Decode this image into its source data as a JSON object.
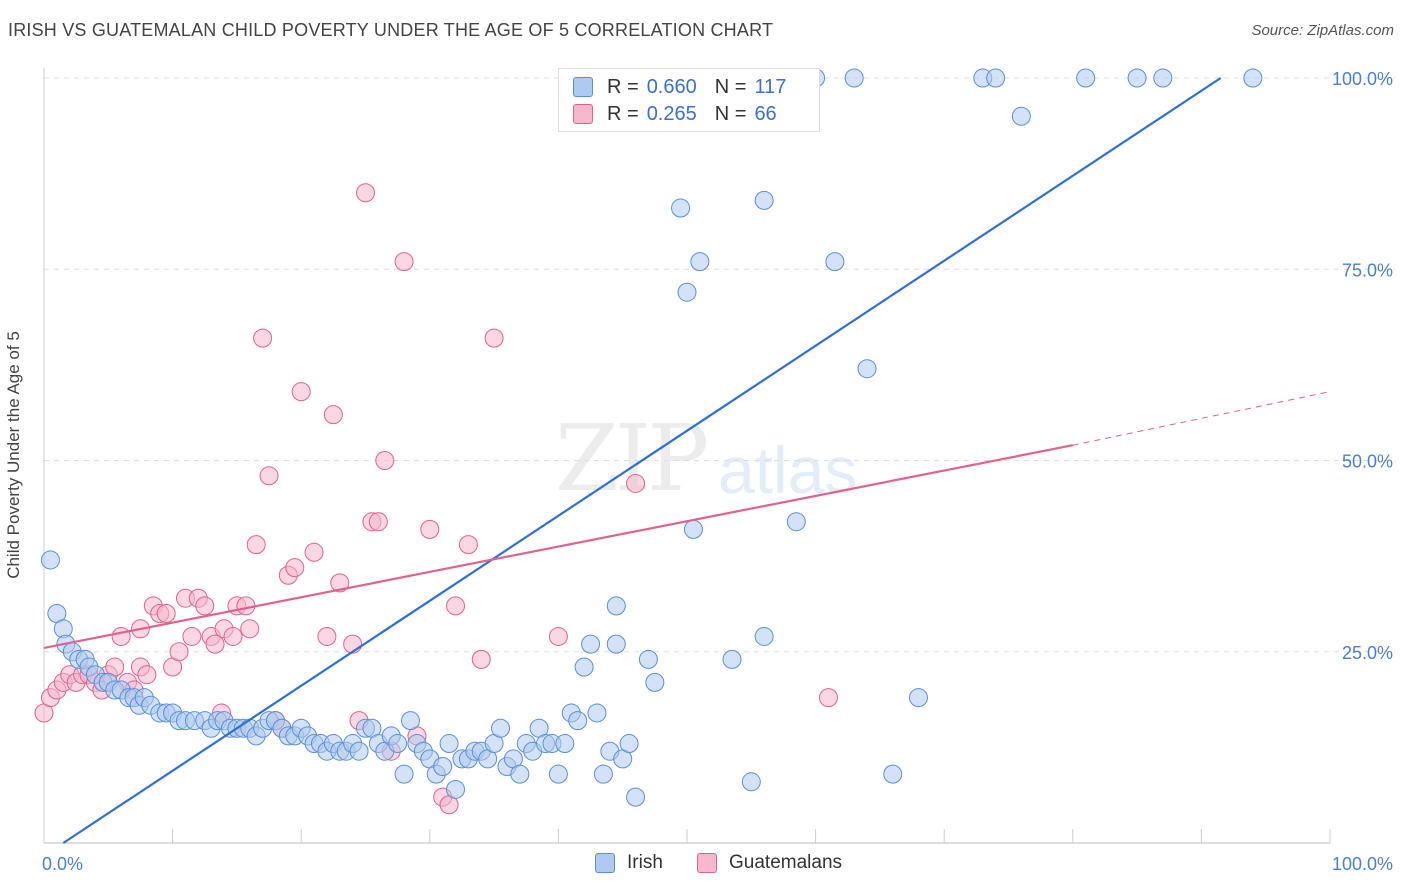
{
  "title": "IRISH VS GUATEMALAN CHILD POVERTY UNDER THE AGE OF 5 CORRELATION CHART",
  "source": "Source: ZipAtlas.com",
  "watermark": {
    "zip": "ZIP",
    "atlas": "atlas"
  },
  "legend": {
    "irish": {
      "r_label": "R =",
      "r_value": "0.660",
      "n_label": "N =",
      "n_value": "117"
    },
    "guatemalan": {
      "r_label": "R =",
      "r_value": "0.265",
      "n_label": "N =",
      "n_value": "66"
    }
  },
  "colors": {
    "irish": "#5b8fd6",
    "irish_fill": "#aecbef",
    "guatemalan": "#e0628f",
    "guatemalan_fill": "#f6b6cb"
  },
  "chart_data": {
    "type": "scatter",
    "title": "IRISH VS GUATEMALAN CHILD POVERTY UNDER THE AGE OF 5 CORRELATION CHART",
    "xlabel": "",
    "ylabel": "Child Poverty Under the Age of 5",
    "xlim": [
      0,
      100
    ],
    "ylim": [
      0,
      100
    ],
    "x_tick_labels": [
      "0.0%",
      "100.0%"
    ],
    "y_tick_labels": [
      "25.0%",
      "50.0%",
      "75.0%",
      "100.0%"
    ],
    "grid": true,
    "legend_position": "top-center",
    "series": [
      {
        "name": "Irish",
        "points": [
          [
            0.5,
            37
          ],
          [
            1,
            30
          ],
          [
            1.5,
            28
          ],
          [
            1.7,
            26
          ],
          [
            2.2,
            25
          ],
          [
            2.7,
            24
          ],
          [
            3.2,
            24
          ],
          [
            3.5,
            23
          ],
          [
            4,
            22
          ],
          [
            4.6,
            21
          ],
          [
            5,
            21
          ],
          [
            5.5,
            20
          ],
          [
            6,
            20
          ],
          [
            6.6,
            19
          ],
          [
            7,
            19
          ],
          [
            7.4,
            18
          ],
          [
            7.8,
            19
          ],
          [
            8.3,
            18
          ],
          [
            9,
            17
          ],
          [
            9.5,
            17
          ],
          [
            10,
            17
          ],
          [
            10.5,
            16
          ],
          [
            11,
            16
          ],
          [
            11.7,
            16
          ],
          [
            12.5,
            16
          ],
          [
            13,
            15
          ],
          [
            13.5,
            16
          ],
          [
            14,
            16
          ],
          [
            14.5,
            15
          ],
          [
            15,
            15
          ],
          [
            15.5,
            15
          ],
          [
            16,
            15
          ],
          [
            16.5,
            14
          ],
          [
            17,
            15
          ],
          [
            17.5,
            16
          ],
          [
            18,
            16
          ],
          [
            18.5,
            15
          ],
          [
            19,
            14
          ],
          [
            19.5,
            14
          ],
          [
            20,
            15
          ],
          [
            20.5,
            14
          ],
          [
            21,
            13
          ],
          [
            21.5,
            13
          ],
          [
            22,
            12
          ],
          [
            22.5,
            13
          ],
          [
            23,
            12
          ],
          [
            23.5,
            12
          ],
          [
            24,
            13
          ],
          [
            24.5,
            12
          ],
          [
            25,
            15
          ],
          [
            25.5,
            15
          ],
          [
            26,
            13
          ],
          [
            26.5,
            12
          ],
          [
            27,
            14
          ],
          [
            27.5,
            13
          ],
          [
            28,
            9
          ],
          [
            28.5,
            16
          ],
          [
            29,
            13
          ],
          [
            29.5,
            12
          ],
          [
            30,
            11
          ],
          [
            30.5,
            9
          ],
          [
            31,
            10
          ],
          [
            31.5,
            13
          ],
          [
            32,
            7
          ],
          [
            32.5,
            11
          ],
          [
            33,
            11
          ],
          [
            33.5,
            12
          ],
          [
            34,
            12
          ],
          [
            34.5,
            11
          ],
          [
            35,
            13
          ],
          [
            35.5,
            15
          ],
          [
            36,
            10
          ],
          [
            36.5,
            11
          ],
          [
            37,
            9
          ],
          [
            37.5,
            13
          ],
          [
            38,
            12
          ],
          [
            38.5,
            15
          ],
          [
            39,
            13
          ],
          [
            39.5,
            13
          ],
          [
            40,
            9
          ],
          [
            40.5,
            13
          ],
          [
            41,
            17
          ],
          [
            41.5,
            16
          ],
          [
            42,
            23
          ],
          [
            42.5,
            26
          ],
          [
            43,
            17
          ],
          [
            43.5,
            9
          ],
          [
            44,
            12
          ],
          [
            44.5,
            26
          ],
          [
            44.5,
            31
          ],
          [
            45,
            11
          ],
          [
            45.5,
            13
          ],
          [
            46,
            6
          ],
          [
            47,
            24
          ],
          [
            47.5,
            21
          ],
          [
            48,
            100
          ],
          [
            49.5,
            83
          ],
          [
            50,
            72
          ],
          [
            50.5,
            41
          ],
          [
            51,
            76
          ],
          [
            53,
            100
          ],
          [
            53.5,
            24
          ],
          [
            54,
            100
          ],
          [
            55,
            8
          ],
          [
            56,
            84
          ],
          [
            56,
            27
          ],
          [
            57,
            100
          ],
          [
            58.5,
            42
          ],
          [
            60,
            100
          ],
          [
            61.5,
            76
          ],
          [
            63,
            100
          ],
          [
            64,
            62
          ],
          [
            66,
            9
          ],
          [
            68,
            19
          ],
          [
            73,
            100
          ],
          [
            74,
            100
          ],
          [
            76,
            95
          ],
          [
            81,
            100
          ],
          [
            85,
            100
          ],
          [
            87,
            100
          ],
          [
            94,
            100
          ]
        ],
        "trend": {
          "x": [
            1.5,
            91.5
          ],
          "y": [
            0,
            100
          ]
        }
      },
      {
        "name": "Guatemalans",
        "points": [
          [
            0,
            17
          ],
          [
            0.5,
            19
          ],
          [
            1,
            20
          ],
          [
            1.5,
            21
          ],
          [
            2,
            22
          ],
          [
            2.5,
            21
          ],
          [
            3,
            22
          ],
          [
            3.5,
            22
          ],
          [
            4,
            21
          ],
          [
            4.5,
            20
          ],
          [
            5,
            22
          ],
          [
            5.5,
            23
          ],
          [
            6,
            27
          ],
          [
            6.5,
            21
          ],
          [
            7,
            20
          ],
          [
            7.5,
            23
          ],
          [
            7.5,
            28
          ],
          [
            8,
            22
          ],
          [
            8.5,
            31
          ],
          [
            9,
            30
          ],
          [
            9.5,
            30
          ],
          [
            10,
            23
          ],
          [
            10.5,
            25
          ],
          [
            11,
            32
          ],
          [
            11.5,
            27
          ],
          [
            12,
            32
          ],
          [
            12.5,
            31
          ],
          [
            13,
            27
          ],
          [
            13.3,
            26
          ],
          [
            13.8,
            17
          ],
          [
            14,
            28
          ],
          [
            14.7,
            27
          ],
          [
            15,
            31
          ],
          [
            15.7,
            31
          ],
          [
            16,
            28
          ],
          [
            16.5,
            39
          ],
          [
            17,
            66
          ],
          [
            17.5,
            48
          ],
          [
            18,
            16
          ],
          [
            18.5,
            15
          ],
          [
            19,
            35
          ],
          [
            19.5,
            36
          ],
          [
            20,
            59
          ],
          [
            21,
            38
          ],
          [
            22,
            27
          ],
          [
            22.5,
            56
          ],
          [
            23,
            34
          ],
          [
            24,
            26
          ],
          [
            24.5,
            16
          ],
          [
            25,
            85
          ],
          [
            25.5,
            42
          ],
          [
            26,
            42
          ],
          [
            26.5,
            50
          ],
          [
            27,
            12
          ],
          [
            28,
            76
          ],
          [
            29,
            14
          ],
          [
            30,
            41
          ],
          [
            31,
            6
          ],
          [
            31.5,
            5
          ],
          [
            32,
            31
          ],
          [
            33,
            39
          ],
          [
            34,
            24
          ],
          [
            35,
            66
          ],
          [
            40,
            27
          ],
          [
            46,
            47
          ],
          [
            61,
            19
          ]
        ],
        "trend": {
          "x": [
            0,
            80
          ],
          "y": [
            25.5,
            52
          ]
        },
        "trend_extension": {
          "x": [
            80,
            100
          ],
          "y": [
            52,
            59
          ]
        }
      }
    ]
  }
}
